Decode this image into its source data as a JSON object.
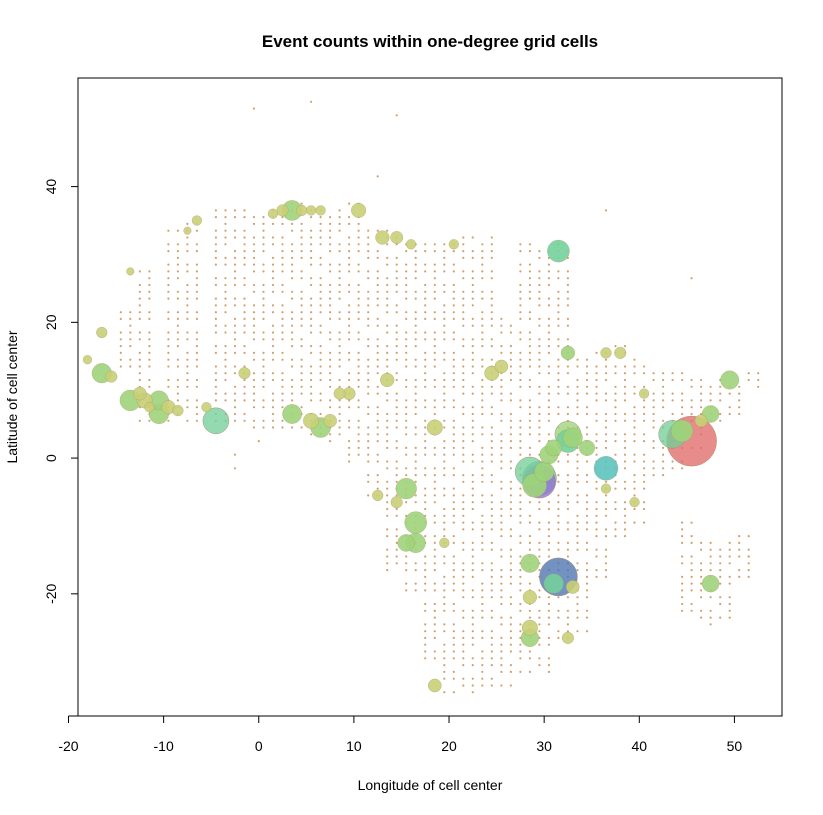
{
  "chart_data": {
    "type": "scatter",
    "title": "Event counts within one-degree grid cells",
    "xlabel": "Longitude of cell center",
    "ylabel": "Latitude of cell center",
    "xlim": [
      -19,
      55
    ],
    "ylim": [
      -38,
      56
    ],
    "x_ticks": [
      -20,
      -10,
      0,
      10,
      20,
      30,
      40,
      50
    ],
    "y_ticks": [
      -20,
      0,
      20,
      40
    ],
    "x_tick_labels": [
      "-20",
      "-10",
      "0",
      "10",
      "20",
      "30",
      "40",
      "50"
    ],
    "y_tick_labels": [
      "-20",
      "0",
      "20",
      "40"
    ],
    "grid": false,
    "legend": "none",
    "colors": {
      "tiny": "#d2a06e",
      "small": "#c8cf75",
      "medium": "#9ed47a",
      "large": "#74d09a",
      "teal": "#5cc3bd",
      "purple": "#9670d0",
      "blue": "#4c72b0",
      "red": "#e06a6a"
    },
    "background_grid": {
      "cells": [
        [
          -18,
          18,
          16,
          16
        ],
        [
          -15,
          12,
          21,
          4
        ],
        [
          -13,
          5,
          27,
          9
        ],
        [
          -10,
          5,
          33,
          5
        ],
        [
          -8,
          5,
          34,
          6
        ],
        [
          -5,
          5,
          36,
          11
        ],
        [
          -3,
          4,
          36,
          8
        ],
        [
          -1,
          4,
          36,
          10
        ],
        [
          1,
          4,
          36,
          21
        ],
        [
          3,
          4,
          37,
          11
        ],
        [
          5,
          3,
          37,
          15
        ],
        [
          7,
          2,
          36,
          17
        ],
        [
          9,
          -1,
          37,
          22
        ],
        [
          11,
          -6,
          33,
          12
        ],
        [
          13,
          -17,
          33,
          14
        ],
        [
          15,
          -20,
          31,
          18
        ],
        [
          17,
          -31,
          31,
          7
        ],
        [
          19,
          -35,
          31,
          6
        ],
        [
          21,
          -35,
          32,
          18
        ],
        [
          23,
          -35,
          32,
          11
        ],
        [
          25,
          -34,
          20,
          5
        ],
        [
          27,
          -32,
          31,
          9
        ],
        [
          29,
          -32,
          31,
          25
        ],
        [
          31,
          -27,
          31,
          26
        ],
        [
          33,
          -26,
          15,
          33
        ],
        [
          35,
          -18,
          15,
          9
        ],
        [
          37,
          -12,
          16,
          20
        ],
        [
          39,
          -10,
          14,
          11
        ],
        [
          41,
          -3,
          12,
          3
        ],
        [
          43,
          -2,
          12,
          28
        ],
        [
          45,
          1,
          12,
          6
        ],
        [
          47,
          4,
          11,
          12
        ],
        [
          49,
          6,
          11,
          5
        ],
        [
          51,
          10,
          12,
          9
        ],
        [
          44,
          -24,
          -10,
          13
        ],
        [
          46,
          -25,
          -12,
          19
        ],
        [
          48,
          -24,
          -13,
          7
        ],
        [
          50,
          -18,
          -12,
          4
        ]
      ],
      "extra": [
        [
          -0.5,
          51.5
        ],
        [
          5.5,
          52.5
        ],
        [
          14.5,
          50.5
        ],
        [
          12.5,
          41.5
        ],
        [
          36.5,
          36.5
        ],
        [
          45.5,
          26.5
        ],
        [
          18.5,
          -22.5
        ],
        [
          -2.5,
          -1.5
        ],
        [
          -2.5,
          0.5
        ],
        [
          0,
          2.5
        ],
        [
          50.5,
          -12.5
        ],
        [
          51.5,
          -14.5
        ]
      ]
    },
    "points": [
      [
        -18.0,
        14.5,
        8,
        "small"
      ],
      [
        -16.5,
        18.5,
        12,
        "small"
      ],
      [
        -16.5,
        12.5,
        40,
        "medium"
      ],
      [
        -15.5,
        12.0,
        14,
        "small"
      ],
      [
        -13.5,
        27.5,
        6,
        "small"
      ],
      [
        -13.5,
        8.5,
        45,
        "medium"
      ],
      [
        -12.5,
        9.5,
        18,
        "small"
      ],
      [
        -12.0,
        8.5,
        25,
        "small"
      ],
      [
        -11.5,
        7.5,
        10,
        "small"
      ],
      [
        -10.5,
        8.5,
        38,
        "medium"
      ],
      [
        -10.5,
        6.5,
        40,
        "medium"
      ],
      [
        -9.5,
        7.5,
        20,
        "small"
      ],
      [
        -8.5,
        7.0,
        12,
        "small"
      ],
      [
        -7.5,
        33.5,
        6,
        "small"
      ],
      [
        -6.5,
        35.0,
        10,
        "small"
      ],
      [
        -5.5,
        7.5,
        10,
        "small"
      ],
      [
        -4.5,
        5.5,
        70,
        "large"
      ],
      [
        -1.5,
        12.5,
        14,
        "small"
      ],
      [
        1.5,
        36.0,
        10,
        "small"
      ],
      [
        2.5,
        36.5,
        14,
        "small"
      ],
      [
        3.5,
        36.5,
        42,
        "medium"
      ],
      [
        4.5,
        36.5,
        12,
        "small"
      ],
      [
        5.5,
        36.5,
        10,
        "small"
      ],
      [
        6.5,
        36.5,
        10,
        "small"
      ],
      [
        3.5,
        6.5,
        38,
        "medium"
      ],
      [
        5.5,
        5.5,
        25,
        "small"
      ],
      [
        6.5,
        4.5,
        42,
        "medium"
      ],
      [
        7.5,
        5.5,
        18,
        "small"
      ],
      [
        8.5,
        9.5,
        14,
        "small"
      ],
      [
        9.5,
        9.5,
        16,
        "small"
      ],
      [
        10.5,
        36.5,
        22,
        "small"
      ],
      [
        13.0,
        32.5,
        20,
        "small"
      ],
      [
        14.5,
        32.5,
        16,
        "small"
      ],
      [
        16.0,
        31.5,
        10,
        "small"
      ],
      [
        13.5,
        11.5,
        20,
        "small"
      ],
      [
        15.5,
        -4.5,
        45,
        "medium"
      ],
      [
        15.5,
        -12.5,
        30,
        "medium"
      ],
      [
        16.5,
        -9.5,
        50,
        "medium"
      ],
      [
        16.5,
        -12.5,
        40,
        "medium"
      ],
      [
        14.5,
        -6.5,
        14,
        "small"
      ],
      [
        18.5,
        4.5,
        25,
        "small"
      ],
      [
        18.5,
        -33.5,
        18,
        "small"
      ],
      [
        20.5,
        31.5,
        10,
        "small"
      ],
      [
        24.5,
        12.5,
        22,
        "small"
      ],
      [
        25.5,
        13.5,
        18,
        "small"
      ],
      [
        28.5,
        -2.0,
        90,
        "large"
      ],
      [
        29.5,
        -3.0,
        120,
        "teal"
      ],
      [
        29.5,
        -3.5,
        110,
        "purple"
      ],
      [
        29.0,
        -4.0,
        60,
        "medium"
      ],
      [
        30.0,
        -2.0,
        40,
        "medium"
      ],
      [
        30.5,
        0.5,
        35,
        "medium"
      ],
      [
        31.0,
        1.5,
        28,
        "medium"
      ],
      [
        31.5,
        30.5,
        50,
        "large"
      ],
      [
        32.5,
        3.5,
        70,
        "medium"
      ],
      [
        32.5,
        2.5,
        55,
        "large"
      ],
      [
        33.0,
        3.0,
        40,
        "medium"
      ],
      [
        32.5,
        15.5,
        20,
        "medium"
      ],
      [
        34.5,
        1.5,
        25,
        "medium"
      ],
      [
        36.5,
        -1.5,
        60,
        "teal"
      ],
      [
        28.5,
        -15.5,
        35,
        "medium"
      ],
      [
        28.5,
        -20.5,
        20,
        "small"
      ],
      [
        31.5,
        -17.5,
        150,
        "blue"
      ],
      [
        31.0,
        -18.5,
        40,
        "large"
      ],
      [
        33.0,
        -19.0,
        18,
        "small"
      ],
      [
        28.5,
        -26.5,
        32,
        "medium"
      ],
      [
        28.5,
        -25.0,
        25,
        "small"
      ],
      [
        32.5,
        -26.5,
        14,
        "small"
      ],
      [
        38.0,
        15.5,
        14,
        "small"
      ],
      [
        36.5,
        15.5,
        12,
        "small"
      ],
      [
        40.5,
        9.5,
        10,
        "small"
      ],
      [
        43.5,
        3.5,
        80,
        "large"
      ],
      [
        44.5,
        4.0,
        50,
        "medium"
      ],
      [
        45.5,
        2.5,
        260,
        "red"
      ],
      [
        46.5,
        5.5,
        16,
        "small"
      ],
      [
        47.5,
        6.5,
        30,
        "medium"
      ],
      [
        49.5,
        11.5,
        35,
        "medium"
      ],
      [
        47.5,
        -18.5,
        30,
        "medium"
      ],
      [
        36.5,
        -4.5,
        10,
        "small"
      ],
      [
        39.5,
        -6.5,
        10,
        "small"
      ],
      [
        12.5,
        -5.5,
        12,
        "small"
      ],
      [
        19.5,
        -12.5,
        10,
        "small"
      ]
    ]
  }
}
